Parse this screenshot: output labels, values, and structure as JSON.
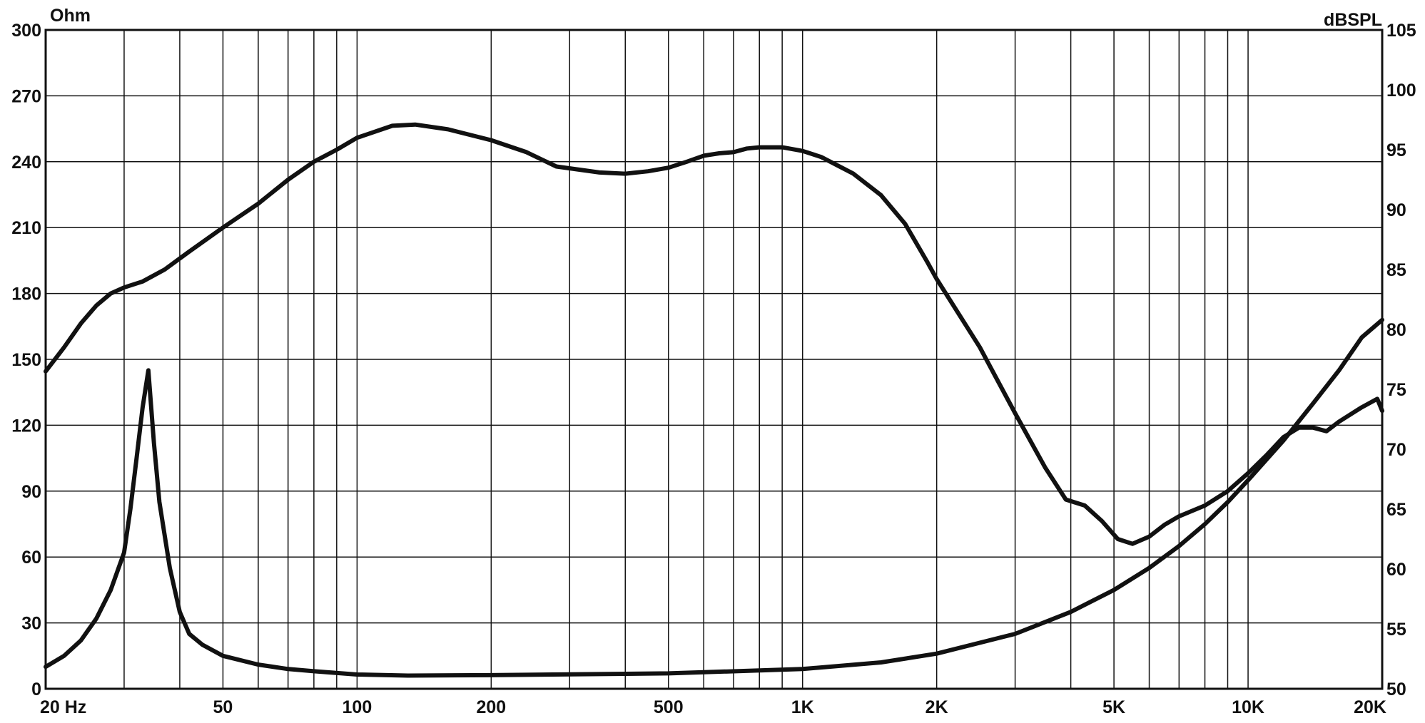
{
  "chart_data": {
    "type": "line",
    "title": "",
    "xlabel": "",
    "x_scale": "log",
    "xlim": [
      20,
      20000
    ],
    "ylim_left": [
      0,
      300
    ],
    "ylim_right": [
      50,
      105
    ],
    "y_left_unit": "Ohm",
    "y_right_unit": "dBSPL",
    "grid": true,
    "x_tick_labels": [
      {
        "value": 20,
        "label": "20 Hz"
      },
      {
        "value": 50,
        "label": "50"
      },
      {
        "value": 100,
        "label": "100"
      },
      {
        "value": 200,
        "label": "200"
      },
      {
        "value": 500,
        "label": "500"
      },
      {
        "value": 1000,
        "label": "1K"
      },
      {
        "value": 2000,
        "label": "2K"
      },
      {
        "value": 5000,
        "label": "5K"
      },
      {
        "value": 10000,
        "label": "10K"
      },
      {
        "value": 20000,
        "label": "20K"
      }
    ],
    "y_left_ticks": [
      "0",
      "30",
      "60",
      "90",
      "120",
      "150",
      "180",
      "210",
      "240",
      "270",
      "300"
    ],
    "y_right_ticks": [
      "50",
      "55",
      "60",
      "65",
      "70",
      "75",
      "80",
      "85",
      "90",
      "95",
      "100",
      "105"
    ],
    "series": [
      {
        "axis": "right",
        "x": [
          20,
          22,
          24,
          26,
          28,
          30,
          33,
          37,
          42,
          50,
          60,
          70,
          80,
          90,
          100,
          120,
          135,
          160,
          200,
          240,
          280,
          350,
          400,
          450,
          500,
          550,
          600,
          650,
          700,
          750,
          800,
          900,
          1000,
          1100,
          1300,
          1500,
          1700,
          1900,
          2000,
          2500,
          3000,
          3500,
          3900,
          4300,
          4700,
          5100,
          5500,
          6000,
          6500,
          7000,
          8000,
          9000,
          10000,
          11000,
          12000,
          13000,
          14000,
          15000,
          16000,
          18000,
          19500,
          20000
        ],
        "y": [
          76.5,
          78.5,
          80.5,
          82,
          83,
          83.5,
          84,
          85,
          86.5,
          88.5,
          90.5,
          92.5,
          94,
          95,
          96,
          97,
          97.1,
          96.7,
          95.8,
          94.8,
          93.6,
          93.1,
          93,
          93.2,
          93.5,
          94,
          94.5,
          94.7,
          94.8,
          95.1,
          95.2,
          95.2,
          94.9,
          94.4,
          93,
          91.2,
          88.8,
          85.7,
          84.2,
          78.5,
          73,
          68.5,
          65.8,
          65.3,
          64,
          62.5,
          62.1,
          62.7,
          63.7,
          64.4,
          65.3,
          66.5,
          68,
          69.5,
          71,
          71.8,
          71.8,
          71.5,
          72.3,
          73.5,
          74.2,
          73.2
        ]
      },
      {
        "axis": "left",
        "x": [
          20,
          22,
          24,
          26,
          28,
          30,
          31,
          32,
          33,
          34,
          35,
          36,
          38,
          40,
          42,
          45,
          50,
          60,
          70,
          80,
          100,
          130,
          200,
          500,
          1000,
          1500,
          2000,
          3000,
          4000,
          5000,
          6000,
          7000,
          8000,
          9000,
          10000,
          12000,
          14000,
          16000,
          18000,
          20000
        ],
        "y": [
          10,
          15,
          22,
          32,
          45,
          62,
          82,
          105,
          128,
          145,
          112,
          85,
          55,
          35,
          25,
          20,
          15,
          11,
          9,
          8,
          6.5,
          6,
          6.2,
          7,
          9,
          12,
          16,
          25,
          35,
          45,
          55,
          65,
          75,
          85,
          95,
          113,
          130,
          145,
          160,
          168
        ]
      }
    ]
  }
}
